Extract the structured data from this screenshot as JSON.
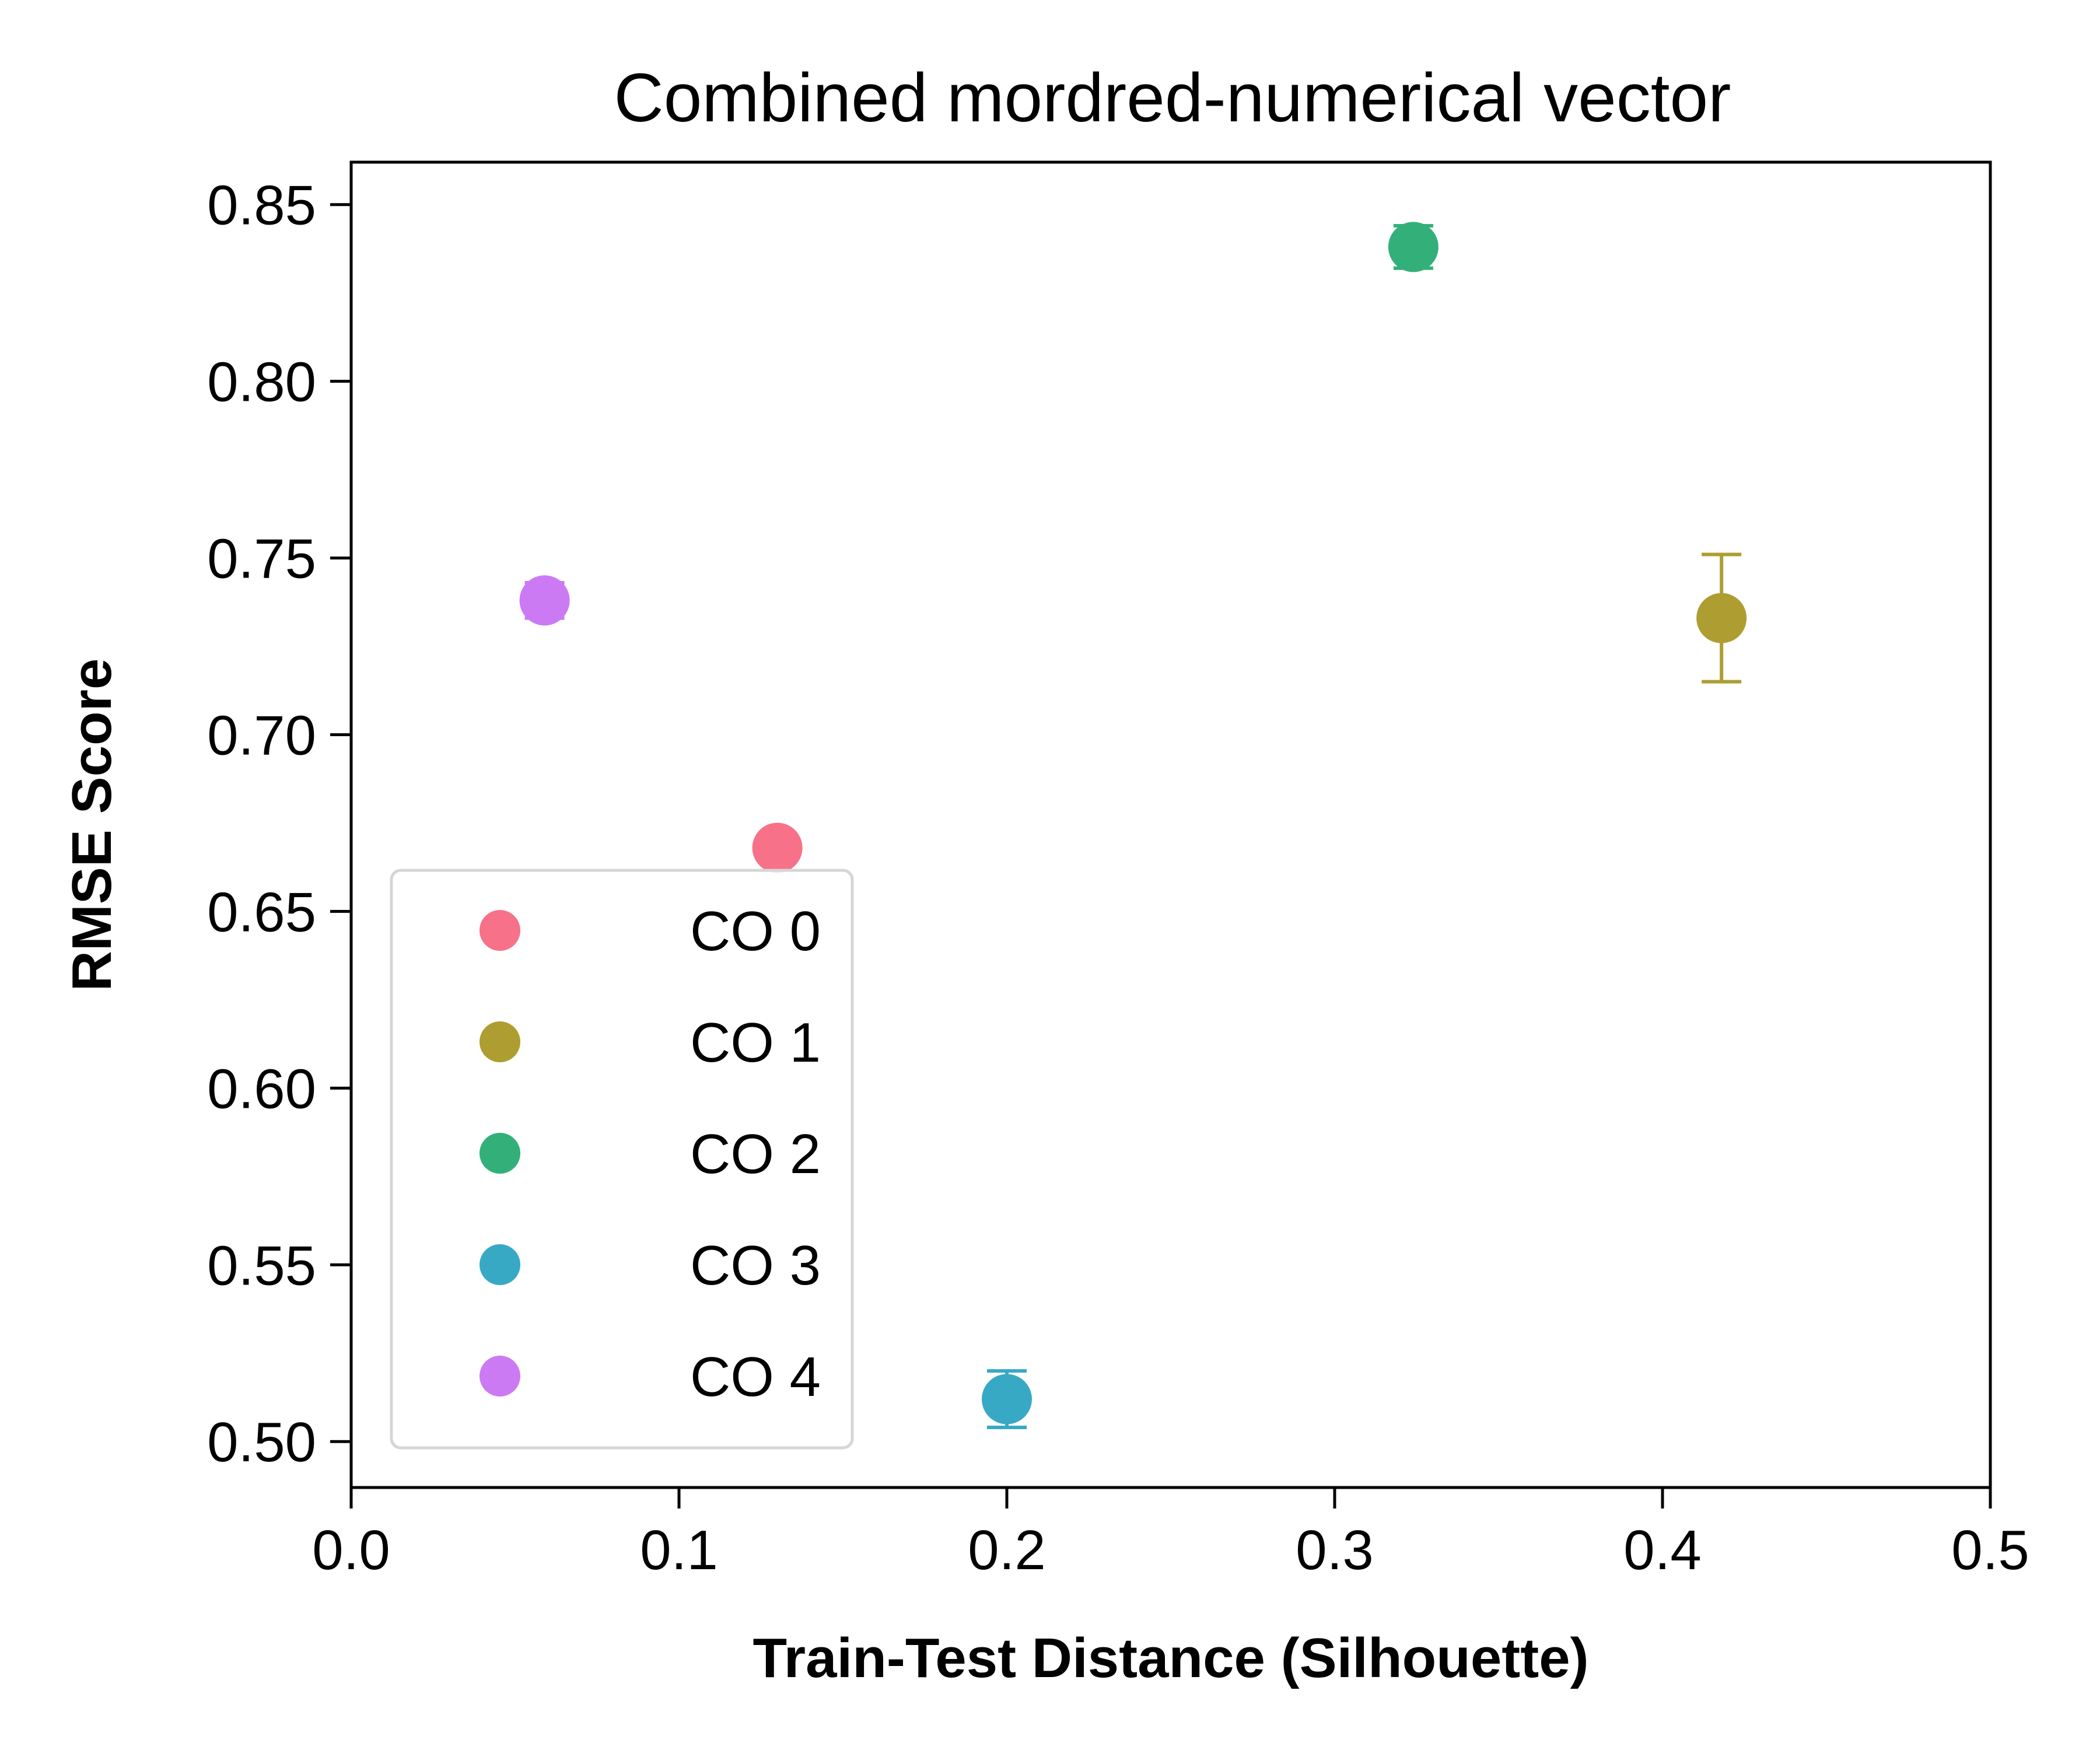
{
  "chart_data": {
    "type": "scatter",
    "title": "Combined mordred-numerical vector",
    "xlabel": "Train-Test Distance (Silhouette)",
    "ylabel": "RMSE Score",
    "xlim": [
      0.0,
      0.5
    ],
    "ylim": [
      0.487,
      0.862
    ],
    "xticks": [
      0.0,
      0.1,
      0.2,
      0.3,
      0.4,
      0.5
    ],
    "xtick_labels": [
      "0.0",
      "0.1",
      "0.2",
      "0.3",
      "0.4",
      "0.5"
    ],
    "yticks": [
      0.5,
      0.55,
      0.6,
      0.65,
      0.7,
      0.75,
      0.8,
      0.85
    ],
    "ytick_labels": [
      "0.50",
      "0.55",
      "0.60",
      "0.65",
      "0.70",
      "0.75",
      "0.80",
      "0.85"
    ],
    "grid": false,
    "legend_position": "lower-left",
    "series": [
      {
        "name": "CO 0",
        "color": "#f77189",
        "x": [
          0.13
        ],
        "y": [
          0.668
        ],
        "yerr": [
          0.003
        ]
      },
      {
        "name": "CO 1",
        "color": "#ae9d31",
        "x": [
          0.418
        ],
        "y": [
          0.733
        ],
        "yerr": [
          0.018
        ]
      },
      {
        "name": "CO 2",
        "color": "#33b07a",
        "x": [
          0.324
        ],
        "y": [
          0.838
        ],
        "yerr": [
          0.006
        ]
      },
      {
        "name": "CO 3",
        "color": "#38a9c5",
        "x": [
          0.2
        ],
        "y": [
          0.512
        ],
        "yerr": [
          0.008
        ]
      },
      {
        "name": "CO 4",
        "color": "#cc7af4",
        "x": [
          0.059
        ],
        "y": [
          0.738
        ],
        "yerr": [
          0.005
        ]
      }
    ]
  }
}
